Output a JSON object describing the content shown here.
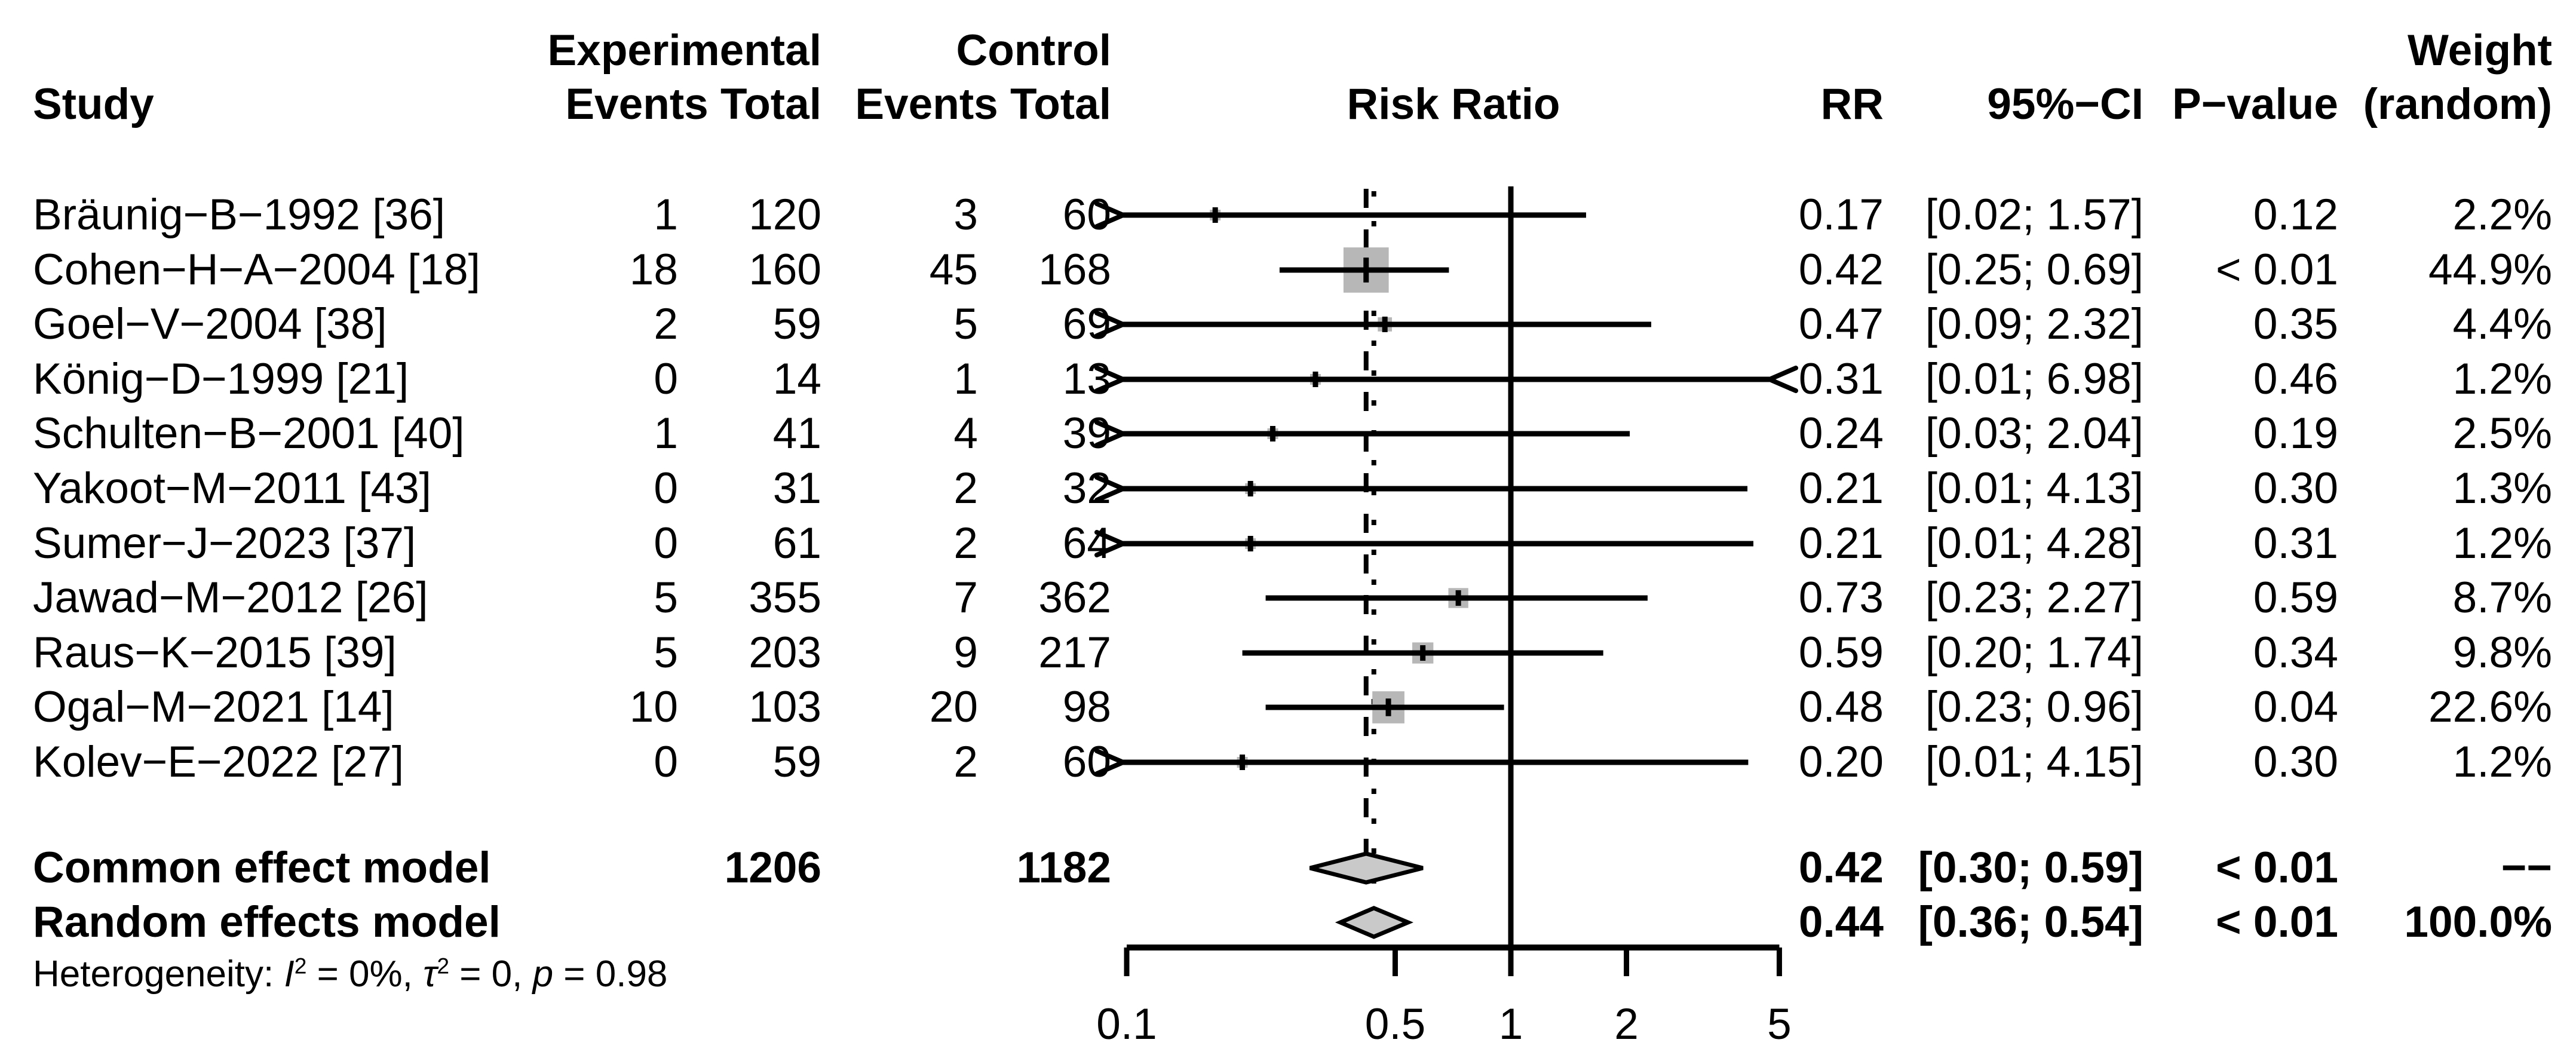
{
  "header": {
    "study": "Study",
    "experimental": "Experimental",
    "control": "Control",
    "events_total_exp": "Events Total",
    "events_total_ctrl": "Events Total",
    "risk_ratio": "Risk Ratio",
    "rr": "RR",
    "ci": "95%−CI",
    "p_value": "P−value",
    "weight_line1": "Weight",
    "weight_line2": "(random)"
  },
  "chart_data": {
    "type": "scatter",
    "subtype": "forest-plot-meta-analysis",
    "title": "Risk Ratio",
    "xscale": "log",
    "xlim": [
      0.1,
      5
    ],
    "x_ticks": [
      "0.1",
      "0.5",
      "1",
      "2",
      "5"
    ],
    "x_tick_values": [
      0.1,
      0.5,
      1,
      2,
      5
    ],
    "reference_line": 1,
    "common_effect_line": 0.42,
    "random_effects_line": 0.44,
    "square_color": "#b7b7b7",
    "diamond_color": "#c9c9c9",
    "studies": [
      {
        "study": "Bräunig−B−1992 [36]",
        "exp_events": "1",
        "exp_total": "120",
        "ctrl_events": "3",
        "ctrl_total": "60",
        "rr": 0.17,
        "ci_low": 0.02,
        "ci_high": 1.57,
        "rr_text": "0.17",
        "ci_text": "[0.02; 1.57]",
        "p_value": "0.12",
        "weight_pct": 2.2,
        "weight_text": "2.2%"
      },
      {
        "study": "Cohen−H−A−2004 [18]",
        "exp_events": "18",
        "exp_total": "160",
        "ctrl_events": "45",
        "ctrl_total": "168",
        "rr": 0.42,
        "ci_low": 0.25,
        "ci_high": 0.69,
        "rr_text": "0.42",
        "ci_text": "[0.25; 0.69]",
        "p_value": "< 0.01",
        "weight_pct": 44.9,
        "weight_text": "44.9%"
      },
      {
        "study": "Goel−V−2004 [38]",
        "exp_events": "2",
        "exp_total": "59",
        "ctrl_events": "5",
        "ctrl_total": "69",
        "rr": 0.47,
        "ci_low": 0.09,
        "ci_high": 2.32,
        "rr_text": "0.47",
        "ci_text": "[0.09; 2.32]",
        "p_value": "0.35",
        "weight_pct": 4.4,
        "weight_text": "4.4%"
      },
      {
        "study": "König−D−1999 [21]",
        "exp_events": "0",
        "exp_total": "14",
        "ctrl_events": "1",
        "ctrl_total": "13",
        "rr": 0.31,
        "ci_low": 0.01,
        "ci_high": 6.98,
        "rr_text": "0.31",
        "ci_text": "[0.01; 6.98]",
        "p_value": "0.46",
        "weight_pct": 1.2,
        "weight_text": "1.2%"
      },
      {
        "study": "Schulten−B−2001 [40]",
        "exp_events": "1",
        "exp_total": "41",
        "ctrl_events": "4",
        "ctrl_total": "39",
        "rr": 0.24,
        "ci_low": 0.03,
        "ci_high": 2.04,
        "rr_text": "0.24",
        "ci_text": "[0.03; 2.04]",
        "p_value": "0.19",
        "weight_pct": 2.5,
        "weight_text": "2.5%"
      },
      {
        "study": "Yakoot−M−2011 [43]",
        "exp_events": "0",
        "exp_total": "31",
        "ctrl_events": "2",
        "ctrl_total": "32",
        "rr": 0.21,
        "ci_low": 0.01,
        "ci_high": 4.13,
        "rr_text": "0.21",
        "ci_text": "[0.01; 4.13]",
        "p_value": "0.30",
        "weight_pct": 1.3,
        "weight_text": "1.3%"
      },
      {
        "study": "Sumer−J−2023 [37]",
        "exp_events": "0",
        "exp_total": "61",
        "ctrl_events": "2",
        "ctrl_total": "64",
        "rr": 0.21,
        "ci_low": 0.01,
        "ci_high": 4.28,
        "rr_text": "0.21",
        "ci_text": "[0.01; 4.28]",
        "p_value": "0.31",
        "weight_pct": 1.2,
        "weight_text": "1.2%"
      },
      {
        "study": "Jawad−M−2012 [26]",
        "exp_events": "5",
        "exp_total": "355",
        "ctrl_events": "7",
        "ctrl_total": "362",
        "rr": 0.73,
        "ci_low": 0.23,
        "ci_high": 2.27,
        "rr_text": "0.73",
        "ci_text": "[0.23; 2.27]",
        "p_value": "0.59",
        "weight_pct": 8.7,
        "weight_text": "8.7%"
      },
      {
        "study": "Raus−K−2015 [39]",
        "exp_events": "5",
        "exp_total": "203",
        "ctrl_events": "9",
        "ctrl_total": "217",
        "rr": 0.59,
        "ci_low": 0.2,
        "ci_high": 1.74,
        "rr_text": "0.59",
        "ci_text": "[0.20; 1.74]",
        "p_value": "0.34",
        "weight_pct": 9.8,
        "weight_text": "9.8%"
      },
      {
        "study": "Ogal−M−2021 [14]",
        "exp_events": "10",
        "exp_total": "103",
        "ctrl_events": "20",
        "ctrl_total": "98",
        "rr": 0.48,
        "ci_low": 0.23,
        "ci_high": 0.96,
        "rr_text": "0.48",
        "ci_text": "[0.23; 0.96]",
        "p_value": "0.04",
        "weight_pct": 22.6,
        "weight_text": "22.6%"
      },
      {
        "study": "Kolev−E−2022 [27]",
        "exp_events": "0",
        "exp_total": "59",
        "ctrl_events": "2",
        "ctrl_total": "60",
        "rr": 0.2,
        "ci_low": 0.01,
        "ci_high": 4.15,
        "rr_text": "0.20",
        "ci_text": "[0.01; 4.15]",
        "p_value": "0.30",
        "weight_pct": 1.2,
        "weight_text": "1.2%"
      }
    ],
    "summaries": [
      {
        "label": "Common effect model",
        "exp_total": "1206",
        "ctrl_total": "1182",
        "rr": 0.42,
        "ci_low": 0.3,
        "ci_high": 0.59,
        "rr_text": "0.42",
        "ci_text": "[0.30; 0.59]",
        "p_value": "< 0.01",
        "weight_text": "−−"
      },
      {
        "label": "Random effects model",
        "exp_total": "",
        "ctrl_total": "",
        "rr": 0.44,
        "ci_low": 0.36,
        "ci_high": 0.54,
        "rr_text": "0.44",
        "ci_text": "[0.36; 0.54]",
        "p_value": "< 0.01",
        "weight_text": "100.0%"
      }
    ]
  },
  "footer": {
    "het_prefix": "Heterogeneity: ",
    "het_I": "I",
    "het_sup1": "2",
    "het_mid1": " = 0%, ",
    "het_tau": "τ",
    "het_sup2": "2",
    "het_mid2": " = 0, ",
    "het_p": "p",
    "het_tail": " = 0.98"
  }
}
